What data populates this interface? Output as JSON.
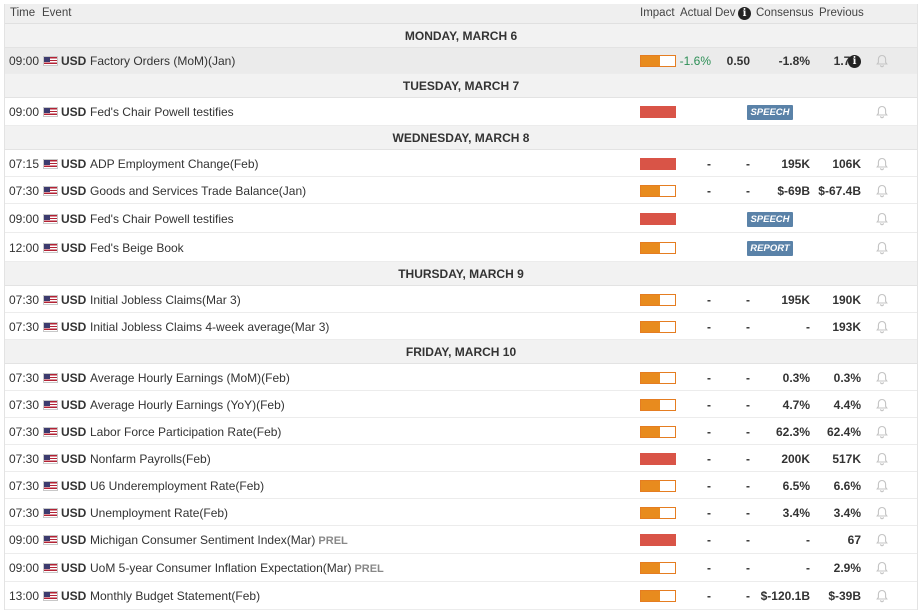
{
  "header": {
    "time": "Time",
    "event": "Event",
    "impact": "Impact",
    "actual": "Actual",
    "dev": "Dev",
    "consensus": "Consensus",
    "previous": "Previous",
    "info_glyph": "i"
  },
  "colors": {
    "impact_high": "#d95447",
    "impact_medium": "#e88b1e",
    "positive_value": "#2d8f56",
    "badge": "#5a82a8"
  },
  "days": [
    {
      "label": "MONDAY, MARCH 6",
      "events": [
        {
          "time": "09:00",
          "currency": "USD",
          "name": "Factory Orders (MoM)(Jan)",
          "prel": "",
          "impact": "medium",
          "badge": "",
          "actual": "-1.6%",
          "actual_color": "green",
          "dev": "0.50",
          "consensus": "-1.8%",
          "previous": "1.7%",
          "info": "i",
          "selected": true
        }
      ]
    },
    {
      "label": "TUESDAY, MARCH 7",
      "events": [
        {
          "time": "09:00",
          "currency": "USD",
          "name": "Fed's Chair Powell testifies",
          "prel": "",
          "impact": "high",
          "badge": "SPEECH",
          "actual": "",
          "dev": "",
          "consensus": "",
          "previous": ""
        }
      ]
    },
    {
      "label": "WEDNESDAY, MARCH 8",
      "events": [
        {
          "time": "07:15",
          "currency": "USD",
          "name": "ADP Employment Change(Feb)",
          "prel": "",
          "impact": "high",
          "badge": "",
          "actual": "-",
          "dev": "-",
          "consensus": "195K",
          "previous": "106K"
        },
        {
          "time": "07:30",
          "currency": "USD",
          "name": "Goods and Services Trade Balance(Jan)",
          "prel": "",
          "impact": "medium",
          "badge": "",
          "actual": "-",
          "dev": "-",
          "consensus": "$-69B",
          "previous": "$-67.4B"
        },
        {
          "time": "09:00",
          "currency": "USD",
          "name": "Fed's Chair Powell testifies",
          "prel": "",
          "impact": "high",
          "badge": "SPEECH",
          "actual": "",
          "dev": "",
          "consensus": "",
          "previous": ""
        },
        {
          "time": "12:00",
          "currency": "USD",
          "name": "Fed's Beige Book",
          "prel": "",
          "impact": "medium",
          "badge": "REPORT",
          "actual": "",
          "dev": "",
          "consensus": "",
          "previous": ""
        }
      ]
    },
    {
      "label": "THURSDAY, MARCH 9",
      "events": [
        {
          "time": "07:30",
          "currency": "USD",
          "name": "Initial Jobless Claims(Mar 3)",
          "prel": "",
          "impact": "medium",
          "badge": "",
          "actual": "-",
          "dev": "-",
          "consensus": "195K",
          "previous": "190K"
        },
        {
          "time": "07:30",
          "currency": "USD",
          "name": "Initial Jobless Claims 4-week average(Mar 3)",
          "prel": "",
          "impact": "medium",
          "badge": "",
          "actual": "-",
          "dev": "-",
          "consensus": "-",
          "previous": "193K"
        }
      ]
    },
    {
      "label": "FRIDAY, MARCH 10",
      "events": [
        {
          "time": "07:30",
          "currency": "USD",
          "name": "Average Hourly Earnings (MoM)(Feb)",
          "prel": "",
          "impact": "medium",
          "badge": "",
          "actual": "-",
          "dev": "-",
          "consensus": "0.3%",
          "previous": "0.3%"
        },
        {
          "time": "07:30",
          "currency": "USD",
          "name": "Average Hourly Earnings (YoY)(Feb)",
          "prel": "",
          "impact": "medium",
          "badge": "",
          "actual": "-",
          "dev": "-",
          "consensus": "4.7%",
          "previous": "4.4%"
        },
        {
          "time": "07:30",
          "currency": "USD",
          "name": "Labor Force Participation Rate(Feb)",
          "prel": "",
          "impact": "medium",
          "badge": "",
          "actual": "-",
          "dev": "-",
          "consensus": "62.3%",
          "previous": "62.4%"
        },
        {
          "time": "07:30",
          "currency": "USD",
          "name": "Nonfarm Payrolls(Feb)",
          "prel": "",
          "impact": "high",
          "badge": "",
          "actual": "-",
          "dev": "-",
          "consensus": "200K",
          "previous": "517K"
        },
        {
          "time": "07:30",
          "currency": "USD",
          "name": "U6 Underemployment Rate(Feb)",
          "prel": "",
          "impact": "medium",
          "badge": "",
          "actual": "-",
          "dev": "-",
          "consensus": "6.5%",
          "previous": "6.6%"
        },
        {
          "time": "07:30",
          "currency": "USD",
          "name": "Unemployment Rate(Feb)",
          "prel": "",
          "impact": "medium",
          "badge": "",
          "actual": "-",
          "dev": "-",
          "consensus": "3.4%",
          "previous": "3.4%"
        },
        {
          "time": "09:00",
          "currency": "USD",
          "name": "Michigan Consumer Sentiment Index(Mar)",
          "prel": "PREL",
          "impact": "high",
          "badge": "",
          "actual": "-",
          "dev": "-",
          "consensus": "-",
          "previous": "67"
        },
        {
          "time": "09:00",
          "currency": "USD",
          "name": "UoM 5-year Consumer Inflation Expectation(Mar)",
          "prel": "PREL",
          "impact": "medium",
          "badge": "",
          "actual": "-",
          "dev": "-",
          "consensus": "-",
          "previous": "2.9%"
        },
        {
          "time": "13:00",
          "currency": "USD",
          "name": "Monthly Budget Statement(Feb)",
          "prel": "",
          "impact": "medium",
          "badge": "",
          "actual": "-",
          "dev": "-",
          "consensus": "$-120.1B",
          "previous": "$-39B"
        }
      ]
    }
  ]
}
